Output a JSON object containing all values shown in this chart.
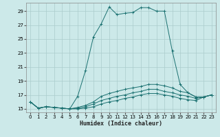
{
  "xlabel": "Humidex (Indice chaleur)",
  "ylabel": "",
  "bg_color": "#cce9e9",
  "grid_color": "#aacccc",
  "line_color": "#1a7070",
  "xlim": [
    -0.5,
    23.5
  ],
  "ylim": [
    14.5,
    30.2
  ],
  "xticks": [
    0,
    1,
    2,
    3,
    4,
    5,
    6,
    7,
    8,
    9,
    10,
    11,
    12,
    13,
    14,
    15,
    16,
    17,
    18,
    19,
    20,
    21,
    22,
    23
  ],
  "yticks": [
    15,
    17,
    19,
    21,
    23,
    25,
    27,
    29
  ],
  "series": [
    [
      16.0,
      15.1,
      15.3,
      15.2,
      15.1,
      15.0,
      16.8,
      20.5,
      25.3,
      27.2,
      29.6,
      28.5,
      28.7,
      28.8,
      29.5,
      29.5,
      29.0,
      29.0,
      23.3,
      18.5,
      17.3,
      16.7,
      16.7,
      17.0
    ],
    [
      16.0,
      15.1,
      15.3,
      15.2,
      15.1,
      15.0,
      15.2,
      15.5,
      16.0,
      16.8,
      17.2,
      17.5,
      17.8,
      18.0,
      18.2,
      18.5,
      18.5,
      18.3,
      18.0,
      17.5,
      17.3,
      16.7,
      16.7,
      17.0
    ],
    [
      16.0,
      15.1,
      15.3,
      15.2,
      15.1,
      15.0,
      15.1,
      15.3,
      15.7,
      16.2,
      16.5,
      16.8,
      17.0,
      17.3,
      17.5,
      17.8,
      17.8,
      17.5,
      17.3,
      17.0,
      16.8,
      16.5,
      16.7,
      17.0
    ],
    [
      16.0,
      15.1,
      15.3,
      15.2,
      15.1,
      15.0,
      15.0,
      15.1,
      15.3,
      15.7,
      16.0,
      16.2,
      16.5,
      16.7,
      17.0,
      17.2,
      17.2,
      17.0,
      16.8,
      16.5,
      16.3,
      16.2,
      16.7,
      17.0
    ]
  ]
}
